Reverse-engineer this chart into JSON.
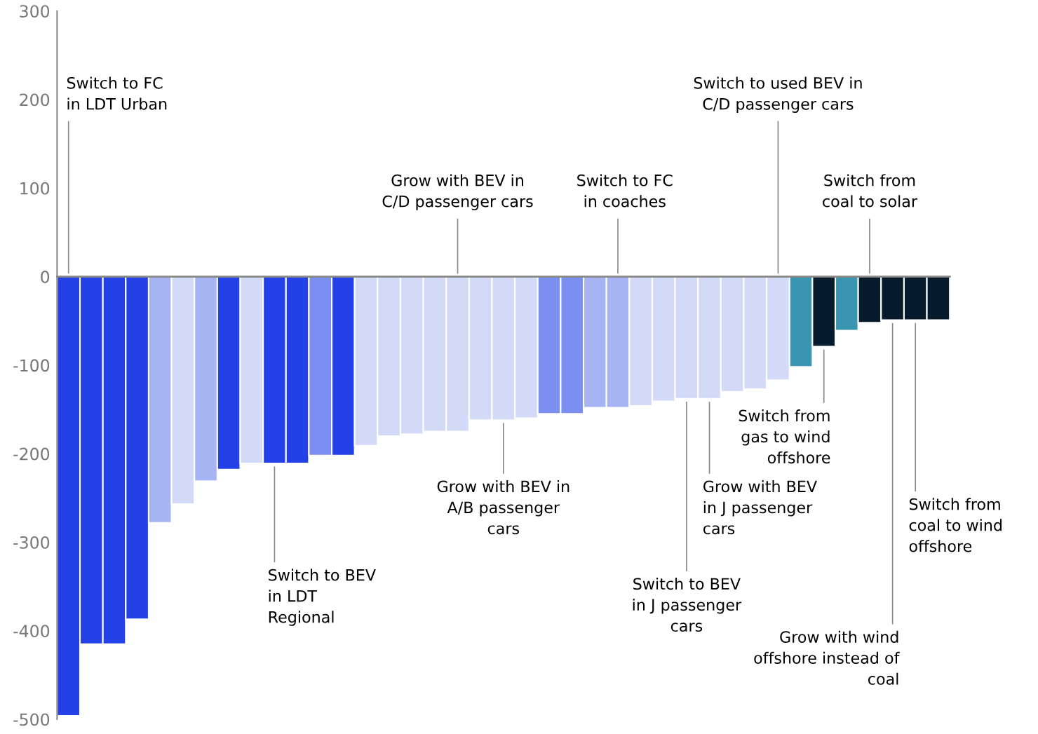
{
  "chart_data": {
    "type": "bar",
    "categories": [
      null,
      null,
      null,
      null,
      null,
      null,
      null,
      null,
      null,
      null,
      null,
      null,
      null,
      null,
      null,
      null,
      null,
      null,
      null,
      null,
      null,
      null,
      null,
      null,
      null,
      null,
      null,
      null,
      null,
      null,
      null,
      null,
      null,
      null,
      null,
      null,
      null,
      null,
      null
    ],
    "values": [
      -496,
      -415,
      -415,
      -387,
      -278,
      -257,
      -231,
      -218,
      -211,
      -211,
      -211,
      -202,
      -202,
      -191,
      -180,
      -178,
      -175,
      -175,
      -162,
      -162,
      -160,
      -155,
      -155,
      -148,
      -148,
      -146,
      -141,
      -138,
      -138,
      -130,
      -127,
      -117,
      -102,
      -79,
      -61,
      -52,
      -49,
      -49,
      -49
    ],
    "colors": [
      "#2341e6",
      "#2341e6",
      "#2341e6",
      "#2341e6",
      "#a6b4f4",
      "#d3daf8",
      "#a6b4f4",
      "#2341e6",
      "#d3daf8",
      "#2341e6",
      "#2341e6",
      "#7b8ff0",
      "#2341e6",
      "#d3daf8",
      "#d3daf8",
      "#d3daf8",
      "#d3daf8",
      "#d3daf8",
      "#d3daf8",
      "#d3daf8",
      "#d3daf8",
      "#7b8ff0",
      "#7b8ff0",
      "#a6b4f4",
      "#a6b4f4",
      "#d3daf8",
      "#d3daf8",
      "#d3daf8",
      "#d3daf8",
      "#d3daf8",
      "#d3daf8",
      "#d3daf8",
      "#3a96b0",
      "#061c2c",
      "#3a96b0",
      "#061c2c",
      "#061c2c",
      "#061c2c",
      "#061c2c"
    ],
    "ylim": [
      -500,
      300
    ],
    "yticks": [
      -500,
      -400,
      -300,
      -200,
      -100,
      0,
      100,
      200,
      300
    ],
    "tick_labels": "y",
    "annotations": [
      "Switch to FC\nin LDT Urban",
      "Grow with BEV in\nC/D passenger cars",
      "Switch to FC\nin coaches",
      "Switch to used BEV in\nC/D passenger cars",
      "Switch from\ncoal to solar",
      "Switch to BEV\nin LDT\nRegional",
      "Grow with BEV in\nA/B passenger\ncars",
      "Switch to BEV\nin J passenger\ncars",
      "Grow with BEV\nin J passenger\ncars",
      "Switch from\ngas to wind\noffshore",
      "Grow with wind\noffshore instead of\ncoal",
      "Switch from\ncoal to wind\noffshore"
    ]
  }
}
